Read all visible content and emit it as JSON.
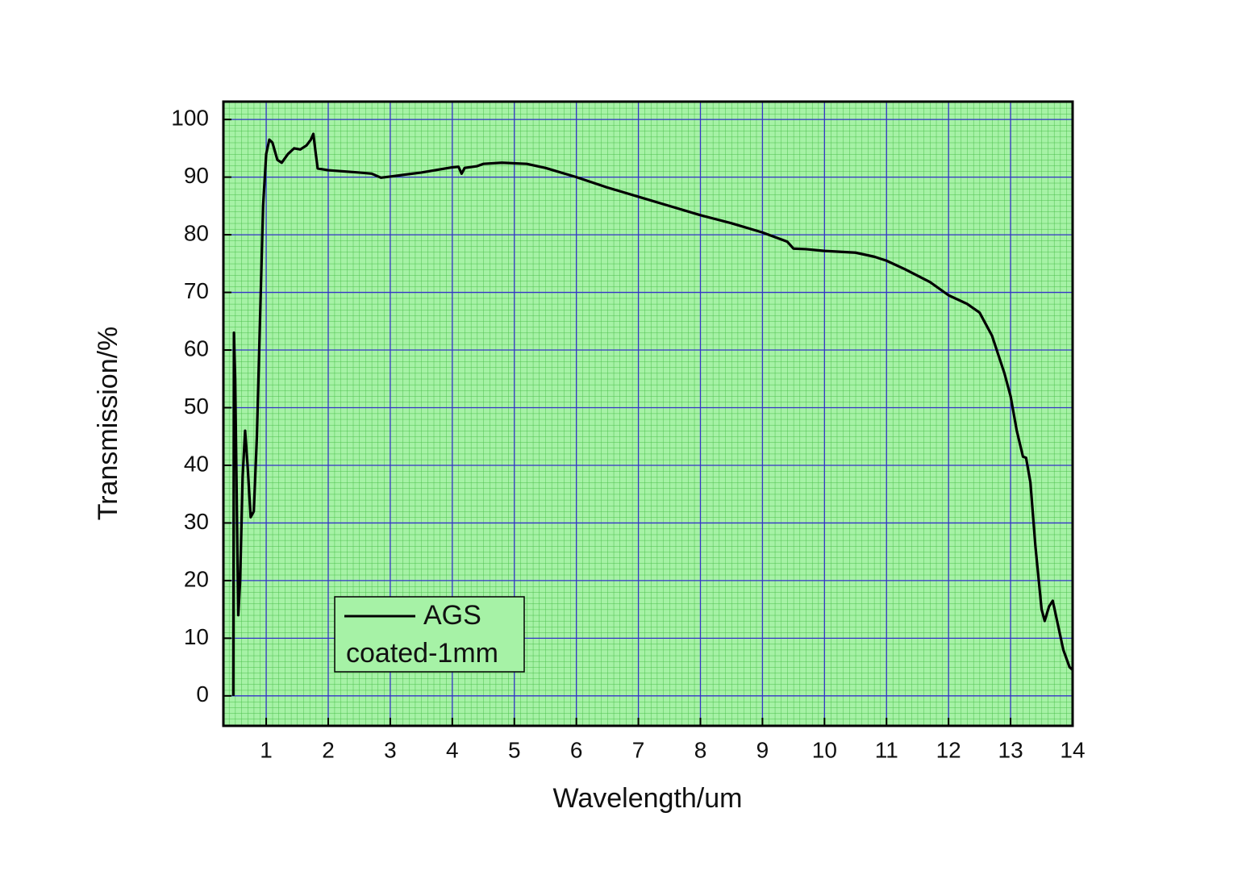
{
  "chart_data": {
    "type": "line",
    "x_label": "Wavelength/um",
    "y_label": "Transmission/%",
    "xlim": [
      0.31,
      14
    ],
    "ylim": [
      -5.2,
      103.1
    ],
    "xticks": [
      1,
      2,
      3,
      4,
      5,
      6,
      7,
      8,
      9,
      10,
      11,
      12,
      13,
      14
    ],
    "yticks": [
      0,
      10,
      20,
      30,
      40,
      50,
      60,
      70,
      80,
      90,
      100
    ],
    "grid": true,
    "minor_grid": true,
    "background": "#a6f2a6",
    "grid_color": "#3434c8",
    "minor_grid_color": "#4cbf4c",
    "legend": "lower left",
    "legend_note": "coated-1mm",
    "x": [
      0.47,
      0.48,
      0.5,
      0.53,
      0.55,
      0.58,
      0.62,
      0.66,
      0.7,
      0.75,
      0.8,
      0.85,
      0.9,
      0.95,
      1.0,
      1.05,
      1.1,
      1.18,
      1.25,
      1.35,
      1.45,
      1.55,
      1.65,
      1.72,
      1.76,
      1.8,
      1.83,
      2.0,
      2.5,
      2.7,
      2.85,
      3.0,
      3.5,
      4.0,
      4.1,
      4.15,
      4.2,
      4.4,
      4.5,
      4.8,
      5.2,
      5.5,
      6.0,
      6.5,
      7.0,
      7.5,
      8.0,
      8.5,
      9.0,
      9.4,
      9.5,
      9.7,
      10.0,
      10.5,
      10.8,
      11.0,
      11.3,
      11.7,
      12.0,
      12.3,
      12.5,
      12.7,
      12.9,
      13.0,
      13.1,
      13.2,
      13.25,
      13.32,
      13.4,
      13.5,
      13.55,
      13.62,
      13.68,
      13.75,
      13.85,
      13.95,
      14.0
    ],
    "series": [
      {
        "name": "AGS",
        "color": "#000000",
        "values": [
          0,
          63,
          55,
          30,
          14,
          20,
          38,
          46,
          40,
          31,
          32,
          45,
          65,
          85,
          94,
          96.5,
          96,
          93,
          92.5,
          94,
          95,
          94.8,
          95.5,
          96.5,
          97.5,
          94,
          91.5,
          91.2,
          90.8,
          90.6,
          89.9,
          90.1,
          90.8,
          91.7,
          91.8,
          90.6,
          91.6,
          91.9,
          92.3,
          92.5,
          92.3,
          91.6,
          90.0,
          88.2,
          86.6,
          85.0,
          83.4,
          82.0,
          80.4,
          78.8,
          77.6,
          77.5,
          77.2,
          76.9,
          76.2,
          75.5,
          74.0,
          71.8,
          69.5,
          68.0,
          66.5,
          62.5,
          56.0,
          52.0,
          46,
          41.5,
          41.3,
          37,
          26,
          15,
          13,
          15.5,
          16.5,
          13,
          8,
          5,
          4.5
        ]
      }
    ]
  }
}
